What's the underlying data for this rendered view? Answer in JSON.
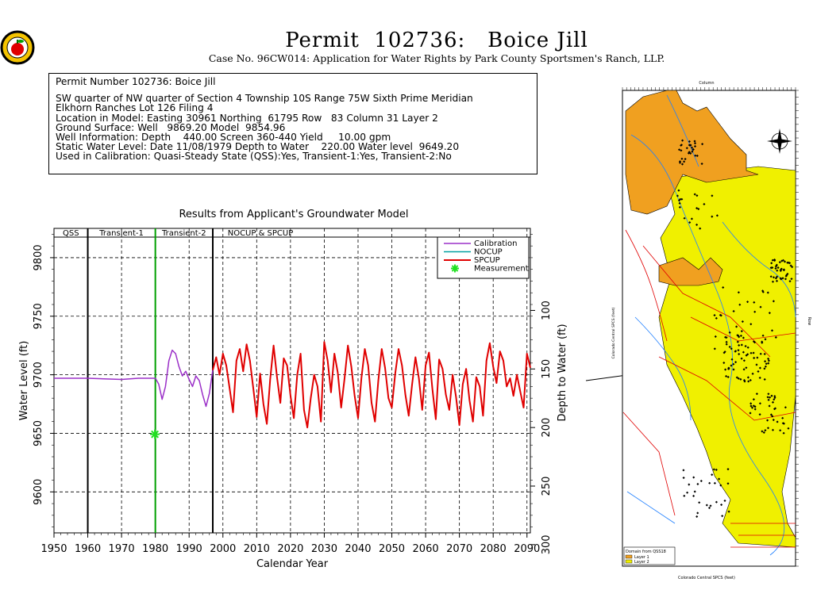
{
  "header": {
    "title": "Permit  102736:   Boice Jill",
    "subtitle": "Case No. 96CW014: Application for Water Rights by Park County Sportsmen's Ranch, LLP."
  },
  "info": {
    "title": "Permit Number 102736: Boice Jill",
    "lines": [
      "SW quarter of NW quarter of Section 4 Township 10S Range 75W Sixth Prime Meridian",
      "Elkhorn Ranches Lot 126 Filing 4",
      "Location in Model: Easting 30961 Northing  61795 Row   83 Column 31 Layer 2",
      "Ground Surface: Well   9869.20 Model  9854.96",
      "Well Information: Depth    440.00 Screen 360-440 Yield     10.00 gpm",
      "Static Water Level: Date 11/08/1979 Depth to Water    220.00 Water level  9649.20",
      "Used in Calibration: Quasi-Steady State (QSS):Yes, Transient-1:Yes, Transient-2:No"
    ]
  },
  "map": {
    "col_label": "Column",
    "row_label": "Row",
    "y_axis_label": "Colorado Central SPCS (feet)",
    "x_axis_label": "Colorado Central SPCS (feet)",
    "legend_title": "Domain from QSS18",
    "legend_items": [
      "Layer 1",
      "Layer 2"
    ],
    "colors": {
      "layer1": "#f0a020",
      "layer2": "#f0f000",
      "streams": "#2080ff",
      "roads": "#e00000",
      "boundary": "#a020f0",
      "wells": "#000000"
    }
  },
  "chart_data": {
    "type": "line",
    "title": "Results from Applicant's Groundwater Model",
    "xlabel": "Calendar Year",
    "ylabel": "Water Level (ft)",
    "ylabel_right": "Depth to Water (ft)",
    "xlim": [
      1950,
      2091
    ],
    "ylim": [
      9565,
      9825
    ],
    "x_ticks": [
      1950,
      1960,
      1970,
      1980,
      1990,
      2000,
      2010,
      2020,
      2030,
      2040,
      2050,
      2060,
      2070,
      2080,
      2090
    ],
    "y_ticks": [
      9600,
      9650,
      9700,
      9750,
      9800
    ],
    "y2_ticks": [
      100,
      150,
      200,
      250,
      300
    ],
    "ground_surface_model": 9854.96,
    "grid": true,
    "legend_position": "top-right",
    "periods": [
      {
        "label": "QSS",
        "start": 1950,
        "end": 1960
      },
      {
        "label": "Transient-1",
        "start": 1960,
        "end": 1980
      },
      {
        "label": "Transient-2",
        "start": 1980,
        "end": 1997
      },
      {
        "label": "NOCUP  &  SPCUP",
        "start": 1997,
        "end": 2091
      }
    ],
    "period_lines": [
      {
        "x": 1960,
        "color": "#000000"
      },
      {
        "x": 1980,
        "color": "#00a000"
      },
      {
        "x": 1997,
        "color": "#000000"
      }
    ],
    "series": [
      {
        "name": "Calibration",
        "color": "#9b30c8",
        "points": [
          [
            1950,
            9697
          ],
          [
            1960,
            9697
          ],
          [
            1970,
            9696
          ],
          [
            1975,
            9697
          ],
          [
            1980,
            9697
          ],
          [
            1981,
            9692
          ],
          [
            1982,
            9679
          ],
          [
            1983,
            9690
          ],
          [
            1984,
            9712
          ],
          [
            1985,
            9721
          ],
          [
            1986,
            9718
          ],
          [
            1987,
            9707
          ],
          [
            1988,
            9699
          ],
          [
            1989,
            9703
          ],
          [
            1990,
            9696
          ],
          [
            1991,
            9690
          ],
          [
            1992,
            9699
          ],
          [
            1993,
            9695
          ],
          [
            1994,
            9683
          ],
          [
            1995,
            9673
          ],
          [
            1996,
            9684
          ],
          [
            1997,
            9704
          ]
        ]
      },
      {
        "name": "NOCUP",
        "color": "#00a0a0",
        "points": []
      },
      {
        "name": "SPCUP",
        "color": "#e00000",
        "points": [
          [
            1997,
            9704
          ],
          [
            1998,
            9715
          ],
          [
            1999,
            9700
          ],
          [
            2000,
            9718
          ],
          [
            2001,
            9708
          ],
          [
            2002,
            9688
          ],
          [
            2003,
            9668
          ],
          [
            2004,
            9712
          ],
          [
            2005,
            9722
          ],
          [
            2006,
            9703
          ],
          [
            2007,
            9726
          ],
          [
            2008,
            9712
          ],
          [
            2009,
            9688
          ],
          [
            2010,
            9664
          ],
          [
            2011,
            9701
          ],
          [
            2012,
            9675
          ],
          [
            2013,
            9658
          ],
          [
            2014,
            9696
          ],
          [
            2015,
            9725
          ],
          [
            2016,
            9698
          ],
          [
            2017,
            9676
          ],
          [
            2018,
            9714
          ],
          [
            2019,
            9708
          ],
          [
            2020,
            9682
          ],
          [
            2021,
            9663
          ],
          [
            2022,
            9700
          ],
          [
            2023,
            9718
          ],
          [
            2024,
            9670
          ],
          [
            2025,
            9655
          ],
          [
            2026,
            9680
          ],
          [
            2027,
            9700
          ],
          [
            2028,
            9690
          ],
          [
            2029,
            9660
          ],
          [
            2030,
            9728
          ],
          [
            2031,
            9712
          ],
          [
            2032,
            9685
          ],
          [
            2033,
            9718
          ],
          [
            2034,
            9702
          ],
          [
            2035,
            9672
          ],
          [
            2036,
            9697
          ],
          [
            2037,
            9725
          ],
          [
            2038,
            9707
          ],
          [
            2039,
            9682
          ],
          [
            2040,
            9663
          ],
          [
            2041,
            9697
          ],
          [
            2042,
            9722
          ],
          [
            2043,
            9708
          ],
          [
            2044,
            9676
          ],
          [
            2045,
            9660
          ],
          [
            2046,
            9695
          ],
          [
            2047,
            9722
          ],
          [
            2048,
            9706
          ],
          [
            2049,
            9680
          ],
          [
            2050,
            9672
          ],
          [
            2051,
            9701
          ],
          [
            2052,
            9722
          ],
          [
            2053,
            9708
          ],
          [
            2054,
            9683
          ],
          [
            2055,
            9665
          ],
          [
            2056,
            9692
          ],
          [
            2057,
            9715
          ],
          [
            2058,
            9697
          ],
          [
            2059,
            9670
          ],
          [
            2060,
            9708
          ],
          [
            2061,
            9719
          ],
          [
            2062,
            9688
          ],
          [
            2063,
            9662
          ],
          [
            2064,
            9713
          ],
          [
            2065,
            9705
          ],
          [
            2066,
            9683
          ],
          [
            2067,
            9670
          ],
          [
            2068,
            9700
          ],
          [
            2069,
            9681
          ],
          [
            2070,
            9657
          ],
          [
            2071,
            9692
          ],
          [
            2072,
            9705
          ],
          [
            2073,
            9678
          ],
          [
            2074,
            9660
          ],
          [
            2075,
            9698
          ],
          [
            2076,
            9690
          ],
          [
            2077,
            9665
          ],
          [
            2078,
            9712
          ],
          [
            2079,
            9727
          ],
          [
            2080,
            9707
          ],
          [
            2081,
            9693
          ],
          [
            2082,
            9720
          ],
          [
            2083,
            9712
          ],
          [
            2084,
            9690
          ],
          [
            2085,
            9697
          ],
          [
            2086,
            9682
          ],
          [
            2087,
            9700
          ],
          [
            2088,
            9686
          ],
          [
            2089,
            9672
          ],
          [
            2090,
            9718
          ],
          [
            2091,
            9706
          ]
        ]
      },
      {
        "name": "Measurement",
        "color": "#20e020",
        "type": "scatter",
        "points": [
          [
            1979.86,
            9649.2
          ]
        ]
      }
    ]
  }
}
